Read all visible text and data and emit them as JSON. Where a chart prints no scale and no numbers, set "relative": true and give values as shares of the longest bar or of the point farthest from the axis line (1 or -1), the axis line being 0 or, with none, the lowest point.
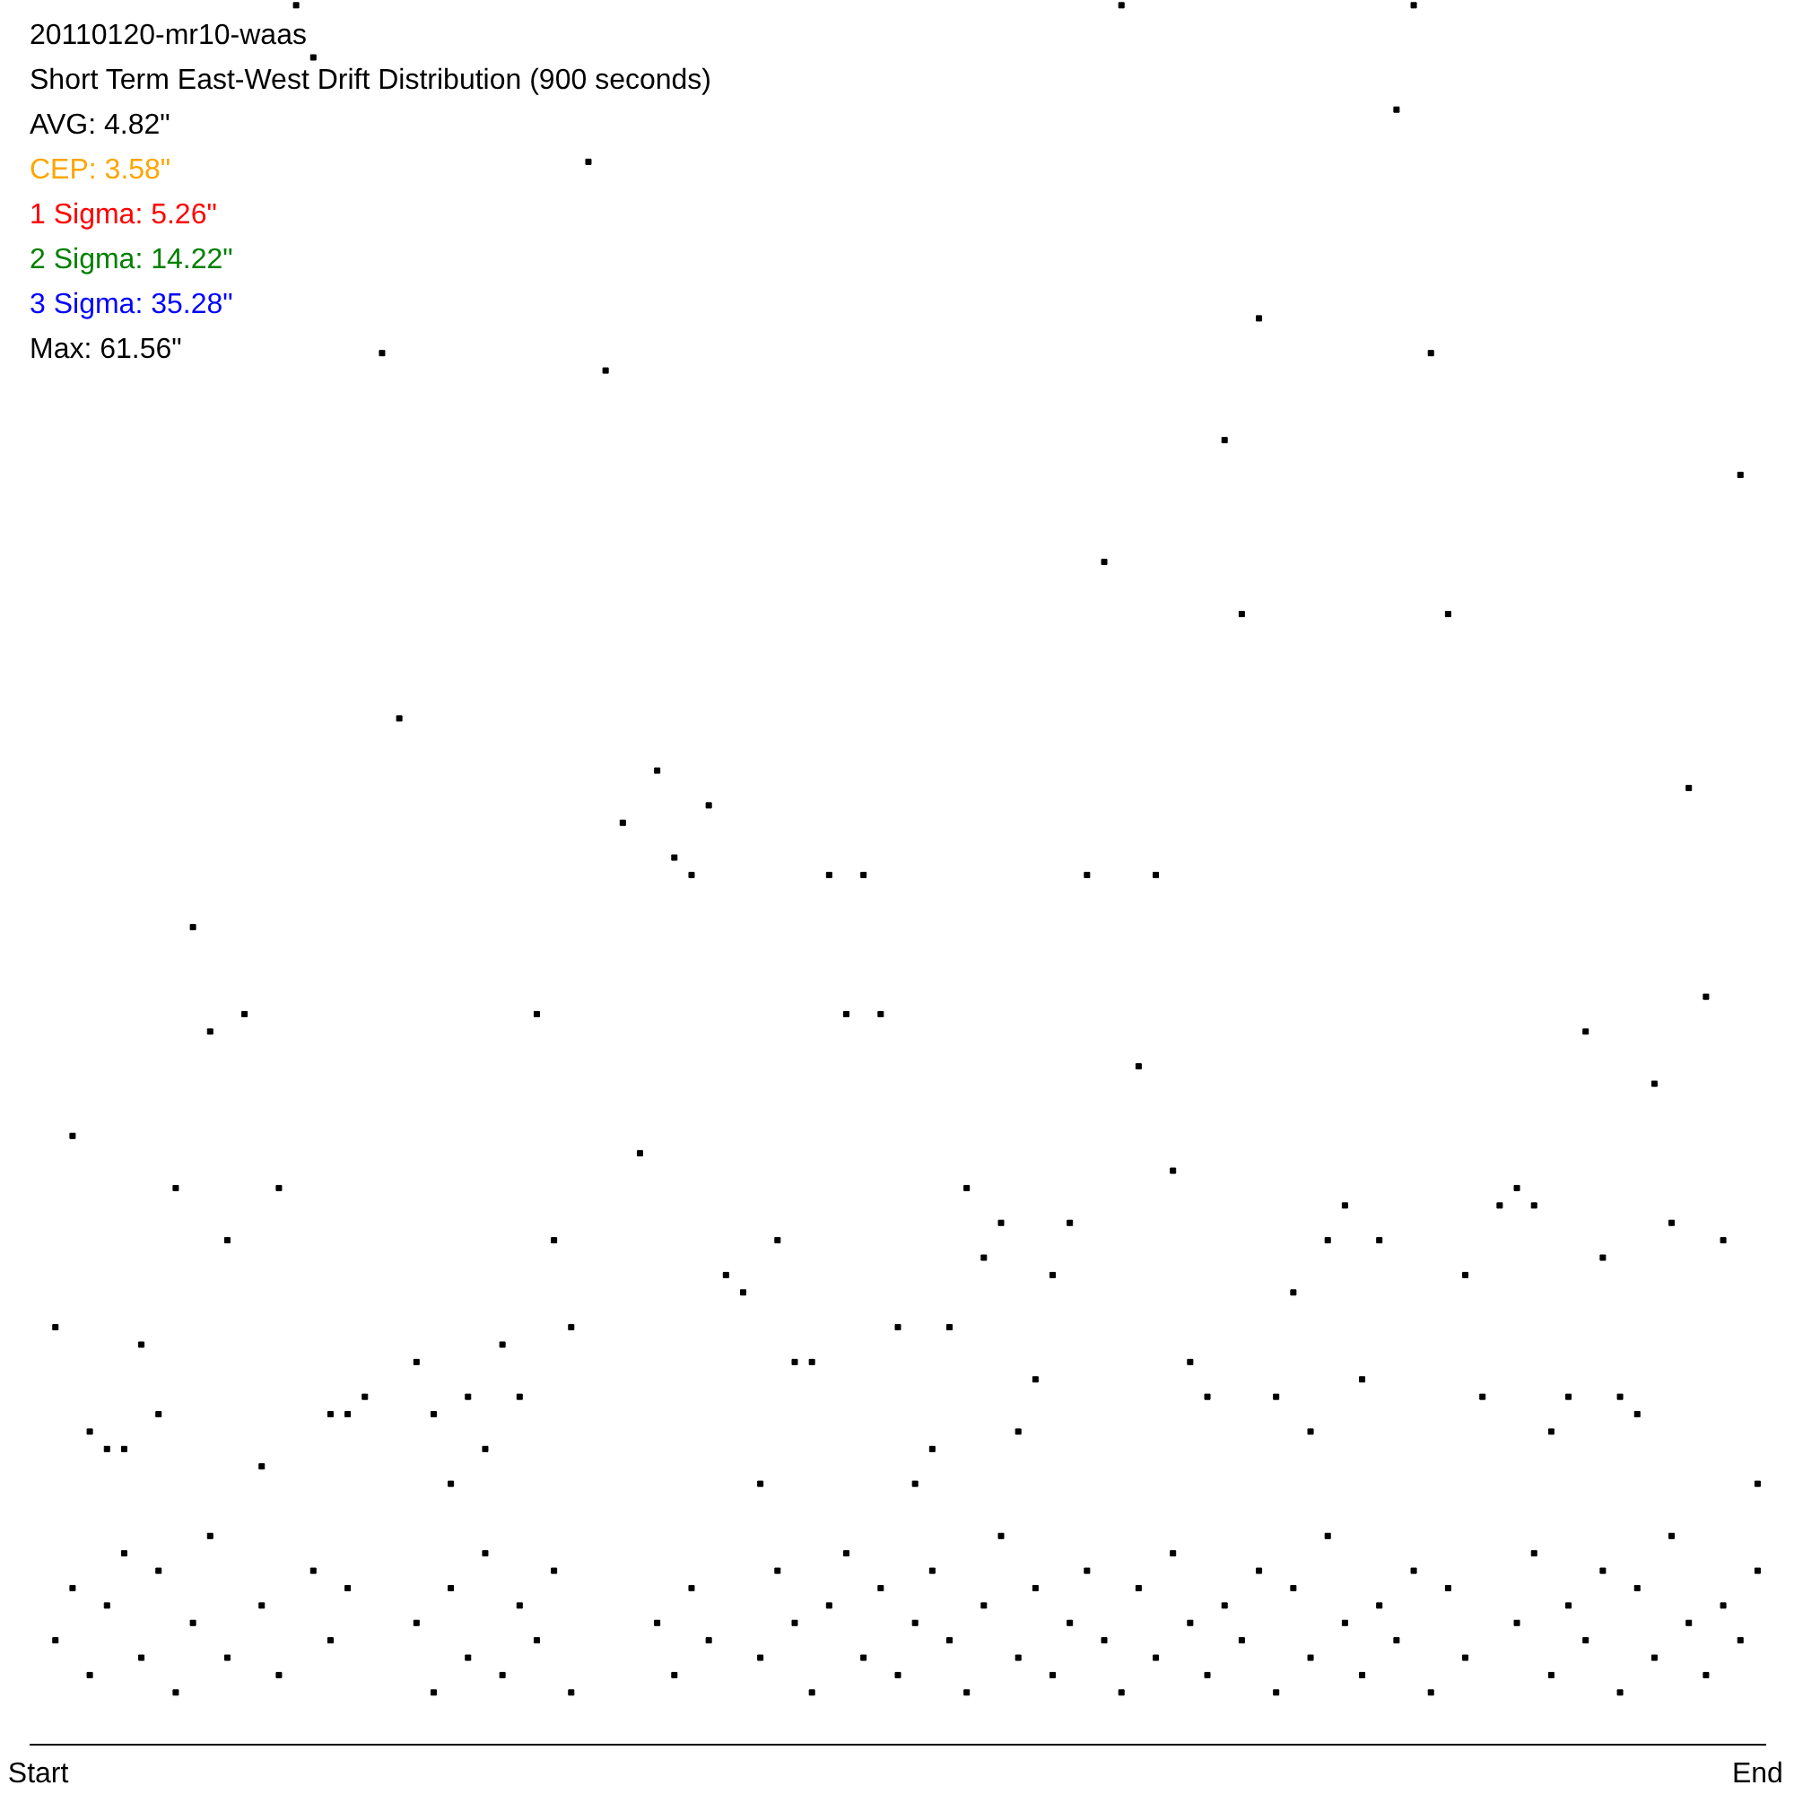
{
  "chart_data": {
    "type": "scatter",
    "title": "20110120-mr10-waas",
    "subtitle": "Short Term East-West Drift Distribution (900 seconds)",
    "annotations": [
      "AVG: 4.82\"",
      "CEP: 3.58\"",
      "1 Sigma: 5.26\"",
      "2 Sigma: 14.22\"",
      "3 Sigma: 35.28\"",
      "Max: 61.56\""
    ],
    "relative": true,
    "marker": "square",
    "categories": [
      "Start",
      null,
      null,
      null,
      null,
      null,
      null,
      null,
      null,
      null,
      null,
      null,
      null,
      null,
      null,
      null,
      null,
      null,
      null,
      null,
      null,
      null,
      null,
      null,
      null,
      null,
      null,
      null,
      null,
      null,
      null,
      null,
      null,
      null,
      null,
      null,
      null,
      null,
      null,
      null,
      null,
      null,
      null,
      null,
      null,
      null,
      null,
      null,
      null,
      null,
      null,
      null,
      null,
      null,
      null,
      null,
      null,
      null,
      null,
      null,
      null,
      null,
      null,
      null,
      null,
      null,
      null,
      null,
      null,
      null,
      null,
      null,
      null,
      null,
      null,
      null,
      null,
      null,
      null,
      null,
      null,
      null,
      null,
      null,
      null,
      null,
      null,
      null,
      null,
      null,
      null,
      null,
      null,
      null,
      null,
      null,
      null,
      null,
      null,
      null,
      "End"
    ],
    "series": [
      {
        "color": "#000000",
        "values": [
          null,
          0.24,
          0.35,
          0.18,
          0.17,
          0.17,
          0.23,
          0.19,
          0.32,
          0.47,
          0.41,
          0.29,
          0.42,
          0.16,
          0.32,
          1.0,
          0.97,
          0.19,
          0.19,
          0.2,
          0.8,
          0.59,
          0.22,
          0.19,
          0.15,
          0.2,
          0.17,
          0.23,
          0.2,
          0.42,
          0.29,
          0.24,
          0.91,
          0.79,
          0.53,
          0.34,
          0.56,
          0.51,
          0.5,
          0.54,
          0.27,
          0.26,
          0.15,
          0.29,
          0.22,
          0.22,
          0.5,
          0.42,
          0.5,
          0.42,
          0.24,
          0.15,
          0.17,
          0.24,
          0.32,
          0.28,
          0.3,
          0.18,
          0.21,
          0.27,
          0.3,
          0.5,
          0.68,
          1.0,
          0.39,
          0.5,
          0.33,
          0.22,
          0.2,
          0.75,
          0.65,
          0.82,
          0.2,
          0.26,
          0.18,
          0.29,
          0.31,
          0.21,
          0.29,
          0.94,
          1.0,
          0.8,
          0.65,
          0.27,
          0.2,
          0.31,
          0.32,
          0.31,
          0.18,
          0.2,
          0.41,
          0.28,
          0.2,
          0.19,
          0.38,
          0.3,
          0.55,
          0.43,
          0.29,
          0.73,
          0.15
        ]
      },
      {
        "color": "#000000",
        "values": [
          null,
          0.06,
          0.09,
          0.04,
          0.08,
          0.11,
          0.05,
          0.1,
          0.03,
          0.07,
          0.12,
          0.05,
          null,
          0.08,
          0.04,
          null,
          0.1,
          0.06,
          0.09,
          null,
          null,
          null,
          0.07,
          0.03,
          0.09,
          0.05,
          0.11,
          0.04,
          0.08,
          0.06,
          0.1,
          0.03,
          null,
          null,
          null,
          null,
          0.07,
          0.04,
          0.09,
          0.06,
          null,
          null,
          0.05,
          0.1,
          0.07,
          0.03,
          0.08,
          0.11,
          0.05,
          0.09,
          0.04,
          0.07,
          0.1,
          0.06,
          0.03,
          0.08,
          0.12,
          0.05,
          0.09,
          0.04,
          0.07,
          0.1,
          0.06,
          0.03,
          0.09,
          0.05,
          0.11,
          0.07,
          0.04,
          0.08,
          0.06,
          0.1,
          0.03,
          0.09,
          0.05,
          0.12,
          0.07,
          0.04,
          0.08,
          0.06,
          0.1,
          0.03,
          0.09,
          0.05,
          null,
          null,
          0.07,
          0.11,
          0.04,
          0.08,
          0.06,
          0.1,
          0.03,
          0.09,
          0.05,
          0.12,
          0.07,
          0.04,
          0.08,
          0.06,
          0.1
        ]
      }
    ]
  }
}
